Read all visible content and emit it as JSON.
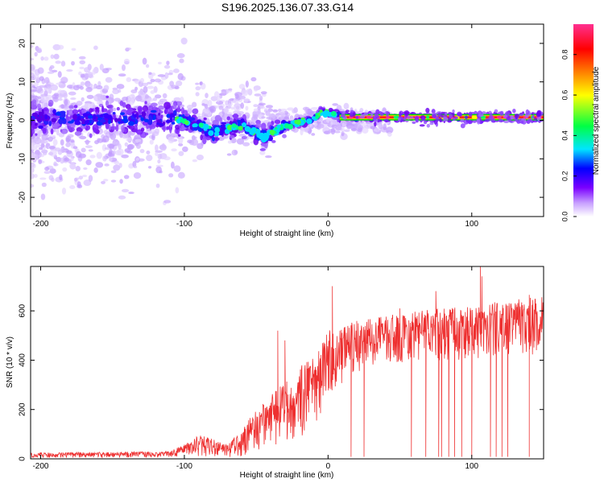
{
  "title": "S196.2025.136.07.33.G14",
  "chart_data": [
    {
      "type": "heatmap",
      "xlabel": "Height of straight line (km)",
      "ylabel": "Frequency (Hz)",
      "xlim": [
        -207,
        150
      ],
      "ylim": [
        -25,
        25
      ],
      "xticks": [
        -200,
        -100,
        0,
        100
      ],
      "yticks": [
        -20,
        -10,
        0,
        10,
        20
      ],
      "colorbar": {
        "label": "Normalized spectral amplitude",
        "range": [
          0,
          0.95
        ],
        "ticks": [
          0.0,
          0.2,
          0.4,
          0.6,
          0.8
        ],
        "colors": [
          "#ffffff",
          "#c8a0ff",
          "#7a00ff",
          "#0000ff",
          "#00e5ff",
          "#00ff44",
          "#ffff00",
          "#ff8000",
          "#ff0000",
          "#ff3090"
        ]
      },
      "ridge": [
        {
          "x": -200,
          "f": 0.5
        },
        {
          "x": -150,
          "f": 0.3
        },
        {
          "x": -110,
          "f": 0.5
        },
        {
          "x": -100,
          "f": 0.0
        },
        {
          "x": -90,
          "f": -1.5
        },
        {
          "x": -80,
          "f": -3.0
        },
        {
          "x": -70,
          "f": -2.0
        },
        {
          "x": -60,
          "f": -1.5
        },
        {
          "x": -50,
          "f": -3.0
        },
        {
          "x": -45,
          "f": -4.5
        },
        {
          "x": -38,
          "f": -3.0
        },
        {
          "x": -30,
          "f": -1.5
        },
        {
          "x": -20,
          "f": -0.5
        },
        {
          "x": -10,
          "f": 0.3
        },
        {
          "x": -5,
          "f": 2.0
        },
        {
          "x": 0,
          "f": 2.0
        },
        {
          "x": 8,
          "f": 1.2
        },
        {
          "x": 20,
          "f": 0.8
        },
        {
          "x": 150,
          "f": 0.8
        }
      ]
    },
    {
      "type": "line",
      "xlabel": "Height of straight line (km)",
      "ylabel": "SNR (10 * v/v)",
      "xlim": [
        -207,
        150
      ],
      "ylim": [
        0,
        780
      ],
      "xticks": [
        -200,
        -100,
        0,
        100
      ],
      "yticks": [
        0,
        200,
        400,
        600
      ],
      "color": "#ee3030",
      "envelope": [
        {
          "x": -207,
          "lo": 5,
          "hi": 25
        },
        {
          "x": -110,
          "lo": 5,
          "hi": 30
        },
        {
          "x": -100,
          "lo": 10,
          "hi": 60
        },
        {
          "x": -90,
          "lo": 10,
          "hi": 100
        },
        {
          "x": -80,
          "lo": 10,
          "hi": 80
        },
        {
          "x": -70,
          "lo": 5,
          "hi": 60
        },
        {
          "x": -60,
          "lo": 10,
          "hi": 120
        },
        {
          "x": -50,
          "lo": 30,
          "hi": 200
        },
        {
          "x": -40,
          "lo": 40,
          "hi": 260
        },
        {
          "x": -30,
          "lo": 60,
          "hi": 320
        },
        {
          "x": -20,
          "lo": 80,
          "hi": 380
        },
        {
          "x": -10,
          "lo": 120,
          "hi": 420
        },
        {
          "x": 0,
          "lo": 250,
          "hi": 520
        },
        {
          "x": 10,
          "lo": 300,
          "hi": 540
        },
        {
          "x": 20,
          "lo": 330,
          "hi": 560
        },
        {
          "x": 40,
          "lo": 380,
          "hi": 580
        },
        {
          "x": 60,
          "lo": 400,
          "hi": 600
        },
        {
          "x": 80,
          "lo": 400,
          "hi": 610
        },
        {
          "x": 100,
          "lo": 400,
          "hi": 620
        },
        {
          "x": 120,
          "lo": 420,
          "hi": 640
        },
        {
          "x": 150,
          "lo": 420,
          "hi": 660
        }
      ],
      "spikes_up": [
        {
          "x": -35,
          "y": 520
        },
        {
          "x": -30,
          "y": 480
        },
        {
          "x": 3,
          "y": 700
        },
        {
          "x": 50,
          "y": 610
        },
        {
          "x": 75,
          "y": 680
        },
        {
          "x": 106,
          "y": 780
        },
        {
          "x": 107,
          "y": 740
        },
        {
          "x": 140,
          "y": 665
        }
      ],
      "dropouts": [
        16,
        25,
        58,
        68,
        77,
        79,
        84,
        88,
        93,
        100,
        113,
        117,
        121,
        125,
        140
      ]
    }
  ]
}
